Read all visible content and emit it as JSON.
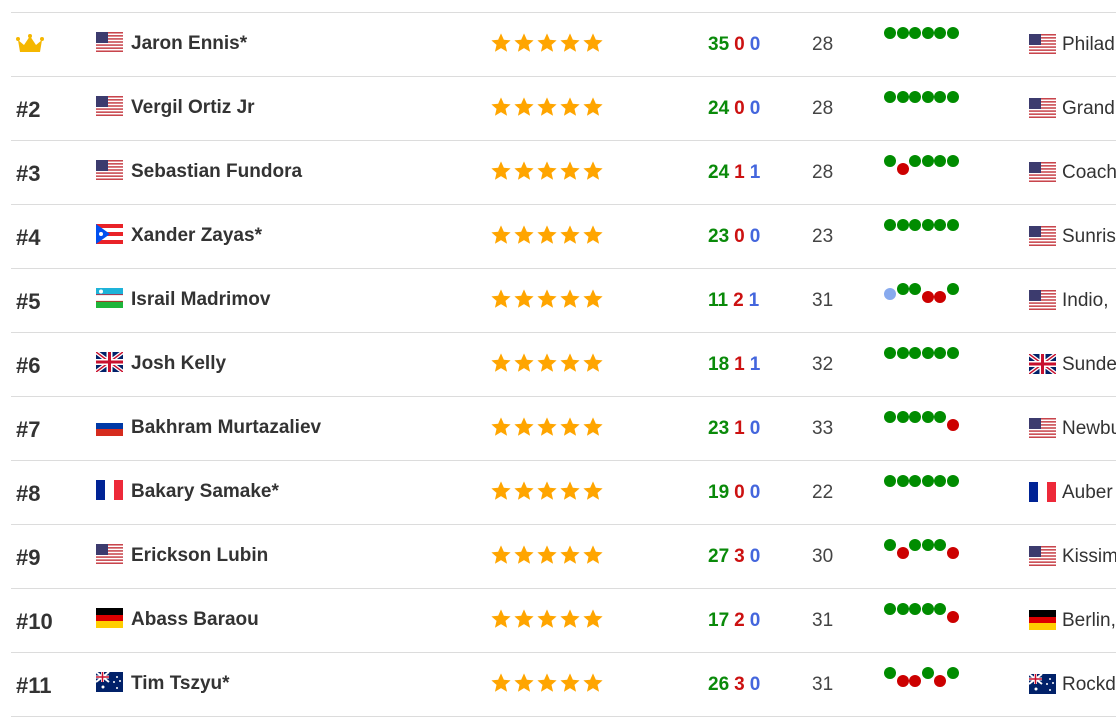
{
  "colors": {
    "win": "#008c00",
    "loss": "#cc0000",
    "draw": "#88aaee",
    "star": "#ffa500",
    "crown": "#f5b700"
  },
  "rows": [
    {
      "rank": "",
      "crown": true,
      "flag": "us",
      "name": "Jaron Ennis*",
      "stars": 5,
      "wins": "35",
      "losses": "0",
      "draws": "0",
      "age": "28",
      "form": "WWWWWW",
      "loc_flag": "us",
      "location": "Philad"
    },
    {
      "rank": "#2",
      "flag": "us",
      "name": "Vergil Ortiz Jr",
      "stars": 5,
      "wins": "24",
      "losses": "0",
      "draws": "0",
      "age": "28",
      "form": "WWWWWW",
      "loc_flag": "us",
      "location": "Grand"
    },
    {
      "rank": "#3",
      "flag": "us",
      "name": "Sebastian Fundora",
      "stars": 5,
      "wins": "24",
      "losses": "1",
      "draws": "1",
      "age": "28",
      "form": "WLWWWW",
      "loc_flag": "us",
      "location": "Coach"
    },
    {
      "rank": "#4",
      "flag": "pr",
      "name": "Xander Zayas*",
      "stars": 5,
      "wins": "23",
      "losses": "0",
      "draws": "0",
      "age": "23",
      "form": "WWWWWW",
      "loc_flag": "us",
      "location": "Sunris"
    },
    {
      "rank": "#5",
      "flag": "uz",
      "name": "Israil Madrimov",
      "stars": 5,
      "wins": "11",
      "losses": "2",
      "draws": "1",
      "age": "31",
      "form": "DWWLLW",
      "loc_flag": "us",
      "location": "Indio,"
    },
    {
      "rank": "#6",
      "flag": "gb",
      "name": "Josh Kelly",
      "stars": 5,
      "wins": "18",
      "losses": "1",
      "draws": "1",
      "age": "32",
      "form": "WWWWWW",
      "loc_flag": "gb",
      "location": "Sunde"
    },
    {
      "rank": "#7",
      "flag": "ru",
      "name": "Bakhram Murtazaliev",
      "stars": 5,
      "wins": "23",
      "losses": "1",
      "draws": "0",
      "age": "33",
      "form": "WWWWWL",
      "loc_flag": "us",
      "location": "Newbu"
    },
    {
      "rank": "#8",
      "flag": "fr",
      "name": "Bakary Samake*",
      "stars": 5,
      "wins": "19",
      "losses": "0",
      "draws": "0",
      "age": "22",
      "form": "WWWWWW",
      "loc_flag": "fr",
      "location": "Auber"
    },
    {
      "rank": "#9",
      "flag": "us",
      "name": "Erickson Lubin",
      "stars": 5,
      "wins": "27",
      "losses": "3",
      "draws": "0",
      "age": "30",
      "form": "WLWWWL",
      "loc_flag": "us",
      "location": "Kissim"
    },
    {
      "rank": "#10",
      "flag": "de",
      "name": "Abass Baraou",
      "stars": 5,
      "wins": "17",
      "losses": "2",
      "draws": "0",
      "age": "31",
      "form": "WWWWWL",
      "loc_flag": "de",
      "location": "Berlin,"
    },
    {
      "rank": "#11",
      "flag": "au",
      "name": "Tim Tszyu*",
      "stars": 5,
      "wins": "26",
      "losses": "3",
      "draws": "0",
      "age": "31",
      "form": "WLLWLW",
      "loc_flag": "au",
      "location": "Rockd"
    }
  ]
}
